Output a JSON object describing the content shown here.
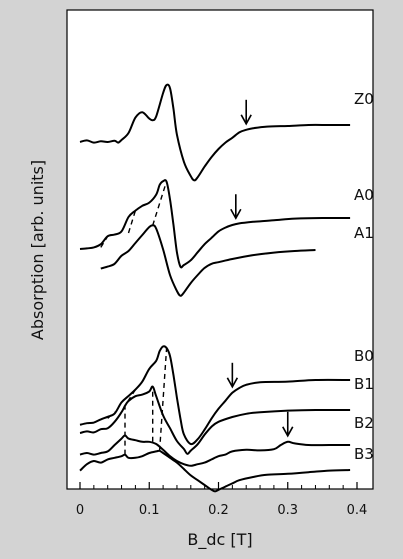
{
  "chart_data": {
    "type": "line",
    "xlabel": "B_dc [T]",
    "ylabel": "Absorption [arb. units]",
    "xlim": [
      0,
      0.4
    ],
    "xticks": [
      "0",
      "0.1",
      "0.2",
      "0.3",
      "0.4"
    ],
    "yticks": "none",
    "grid": false,
    "series": [
      {
        "name": "Z0",
        "x": [
          0.0,
          0.01,
          0.02,
          0.03,
          0.04,
          0.05,
          0.055,
          0.06,
          0.07,
          0.08,
          0.09,
          0.1,
          0.105,
          0.11,
          0.12,
          0.125,
          0.13,
          0.135,
          0.14,
          0.15,
          0.16,
          0.165,
          0.17,
          0.18,
          0.19,
          0.2,
          0.21,
          0.22,
          0.23,
          0.24,
          0.25,
          0.27,
          0.3,
          0.33,
          0.36,
          0.39
        ],
        "y": [
          0.82,
          0.87,
          0.8,
          0.84,
          0.82,
          0.86,
          0.8,
          0.88,
          1.1,
          1.58,
          1.75,
          1.55,
          1.5,
          1.62,
          2.35,
          2.6,
          2.5,
          1.85,
          1.05,
          0.2,
          -0.25,
          -0.38,
          -0.28,
          0.05,
          0.35,
          0.6,
          0.8,
          0.95,
          1.12,
          1.2,
          1.25,
          1.3,
          1.32,
          1.35,
          1.35,
          1.35
        ],
        "arrow_x": 0.24
      },
      {
        "name": "A0",
        "x": [
          0.0,
          0.01,
          0.02,
          0.03,
          0.04,
          0.05,
          0.06,
          0.07,
          0.08,
          0.09,
          0.1,
          0.11,
          0.115,
          0.12,
          0.125,
          0.13,
          0.135,
          0.14,
          0.145,
          0.15,
          0.16,
          0.17,
          0.18,
          0.19,
          0.2,
          0.21,
          0.22,
          0.23,
          0.25,
          0.28,
          0.31,
          0.35,
          0.39
        ],
        "y": [
          0.85,
          0.87,
          0.9,
          1.0,
          1.25,
          1.3,
          1.4,
          1.85,
          2.05,
          2.2,
          2.3,
          2.55,
          2.85,
          2.97,
          2.95,
          2.4,
          1.6,
          0.75,
          0.3,
          0.35,
          0.5,
          0.75,
          1.0,
          1.2,
          1.4,
          1.52,
          1.6,
          1.65,
          1.7,
          1.75,
          1.8,
          1.82,
          1.82
        ],
        "arrow_x": 0.225
      },
      {
        "name": "A1",
        "x": [
          0.03,
          0.04,
          0.05,
          0.06,
          0.07,
          0.08,
          0.09,
          0.1,
          0.105,
          0.11,
          0.12,
          0.13,
          0.14,
          0.145,
          0.15,
          0.16,
          0.17,
          0.18,
          0.19,
          0.2,
          0.22,
          0.25,
          0.28,
          0.31,
          0.34
        ],
        "y": [
          0.8,
          0.86,
          0.95,
          1.2,
          1.35,
          1.6,
          1.85,
          2.1,
          2.15,
          2.05,
          1.4,
          0.6,
          0.1,
          -0.05,
          0.05,
          0.35,
          0.6,
          0.82,
          0.95,
          1.0,
          1.1,
          1.22,
          1.3,
          1.35,
          1.38
        ]
      },
      {
        "name": "B0",
        "x": [
          0.0,
          0.01,
          0.02,
          0.03,
          0.04,
          0.05,
          0.06,
          0.07,
          0.08,
          0.09,
          0.1,
          0.11,
          0.115,
          0.12,
          0.125,
          0.13,
          0.135,
          0.14,
          0.145,
          0.15,
          0.16,
          0.17,
          0.18,
          0.19,
          0.2,
          0.21,
          0.22,
          0.23,
          0.24,
          0.26,
          0.3,
          0.34,
          0.39
        ],
        "y": [
          0.55,
          0.6,
          0.62,
          0.72,
          0.8,
          0.9,
          1.25,
          1.45,
          1.65,
          1.9,
          2.3,
          2.55,
          2.85,
          3.0,
          2.95,
          2.7,
          2.1,
          1.4,
          0.75,
          0.25,
          -0.05,
          0.1,
          0.4,
          0.75,
          1.05,
          1.3,
          1.55,
          1.7,
          1.8,
          1.88,
          1.9,
          1.95,
          1.95
        ],
        "arrow_x": 0.22
      },
      {
        "name": "B1",
        "x": [
          0.0,
          0.01,
          0.02,
          0.03,
          0.04,
          0.05,
          0.06,
          0.065,
          0.07,
          0.08,
          0.09,
          0.1,
          0.105,
          0.11,
          0.12,
          0.13,
          0.14,
          0.15,
          0.155,
          0.16,
          0.17,
          0.18,
          0.19,
          0.2,
          0.22,
          0.24,
          0.26,
          0.3,
          0.34,
          0.39
        ],
        "y": [
          0.6,
          0.65,
          0.62,
          0.72,
          0.75,
          0.95,
          1.25,
          1.45,
          1.6,
          1.75,
          1.8,
          1.9,
          2.05,
          1.75,
          1.15,
          0.75,
          0.35,
          0.1,
          -0.05,
          0.05,
          0.25,
          0.55,
          0.8,
          0.95,
          1.1,
          1.2,
          1.25,
          1.3,
          1.32,
          1.32
        ]
      },
      {
        "name": "B2",
        "x": [
          0.0,
          0.01,
          0.02,
          0.03,
          0.04,
          0.05,
          0.06,
          0.065,
          0.07,
          0.08,
          0.09,
          0.1,
          0.11,
          0.12,
          0.13,
          0.14,
          0.15,
          0.16,
          0.17,
          0.18,
          0.19,
          0.2,
          0.21,
          0.22,
          0.24,
          0.26,
          0.28,
          0.29,
          0.3,
          0.31,
          0.33,
          0.36,
          0.39
        ],
        "y": [
          0.45,
          0.5,
          0.45,
          0.5,
          0.55,
          0.75,
          0.95,
          1.05,
          0.95,
          0.9,
          0.85,
          0.85,
          0.78,
          0.6,
          0.4,
          0.25,
          0.15,
          0.1,
          0.15,
          0.2,
          0.3,
          0.4,
          0.45,
          0.55,
          0.6,
          0.58,
          0.62,
          0.75,
          0.85,
          0.8,
          0.75,
          0.75,
          0.75
        ],
        "arrow_x": 0.3
      },
      {
        "name": "B3",
        "x": [
          0.0,
          0.01,
          0.02,
          0.03,
          0.04,
          0.05,
          0.06,
          0.065,
          0.07,
          0.08,
          0.09,
          0.1,
          0.11,
          0.115,
          0.12,
          0.13,
          0.14,
          0.15,
          0.16,
          0.17,
          0.18,
          0.19,
          0.195,
          0.2,
          0.21,
          0.22,
          0.23,
          0.25,
          0.27,
          0.3,
          0.33,
          0.36,
          0.39
        ],
        "y": [
          0.1,
          0.3,
          0.4,
          0.35,
          0.45,
          0.5,
          0.55,
          0.6,
          0.5,
          0.5,
          0.55,
          0.65,
          0.7,
          0.72,
          0.65,
          0.5,
          0.35,
          0.15,
          -0.05,
          -0.2,
          -0.35,
          -0.5,
          -0.55,
          -0.5,
          -0.4,
          -0.3,
          -0.2,
          -0.1,
          -0.03,
          0.0,
          0.05,
          0.1,
          0.12
        ]
      }
    ],
    "dashed_links": [
      [
        [
          0.03,
          0.9
        ],
        [
          0.04,
          1.25
        ],
        [
          0.05,
          1.3
        ]
      ],
      [
        [
          0.07,
          1.35
        ],
        [
          0.08,
          2.05
        ]
      ],
      [
        [
          0.105,
          2.15
        ],
        [
          0.125,
          2.97
        ]
      ],
      [
        [
          0.04,
          0.75
        ],
        [
          0.05,
          0.95
        ]
      ],
      [
        [
          0.065,
          0.6
        ],
        [
          0.065,
          1.45
        ],
        [
          0.08,
          1.65
        ]
      ],
      [
        [
          0.105,
          0.85
        ],
        [
          0.105,
          2.05
        ]
      ],
      [
        [
          0.115,
          0.72
        ],
        [
          0.125,
          2.95
        ]
      ]
    ]
  }
}
